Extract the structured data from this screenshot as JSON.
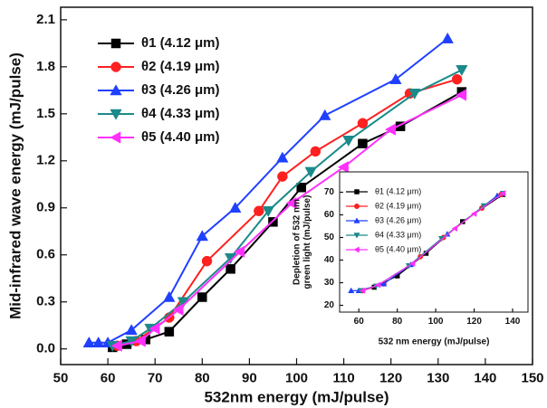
{
  "chart_data": [
    {
      "type": "line",
      "xlabel": "532nm energy (mJ/pulse)",
      "ylabel": "Mid-infrared wave energy (mJ/pulse)",
      "xlim": [
        50,
        150
      ],
      "ylim": [
        -0.1,
        2.18
      ],
      "xticks": [
        50,
        60,
        70,
        80,
        90,
        100,
        110,
        120,
        130,
        140,
        150
      ],
      "yticks": [
        {
          "value": 0,
          "label": "0.0"
        },
        0.3,
        0.6,
        0.9,
        1.2,
        1.5,
        1.8,
        2.1
      ],
      "legend": "upper left",
      "series": [
        {
          "name": "θ1 (4.12 μm)",
          "color": "#000000",
          "marker": "square",
          "x": [
            61,
            64,
            68,
            73,
            80,
            86,
            95,
            101,
            114,
            122,
            135
          ],
          "values": [
            0.01,
            0.03,
            0.06,
            0.11,
            0.33,
            0.51,
            0.81,
            1.03,
            1.31,
            1.42,
            1.64
          ]
        },
        {
          "name": "θ2 (4.19 μm)",
          "color": "#ff2020",
          "marker": "circle",
          "x": [
            62,
            66,
            73,
            81,
            92,
            97,
            104,
            114,
            124,
            134
          ],
          "values": [
            0.02,
            0.05,
            0.2,
            0.56,
            0.88,
            1.1,
            1.26,
            1.44,
            1.63,
            1.72
          ]
        },
        {
          "name": "θ3 (4.26 μm)",
          "color": "#2040ff",
          "marker": "triangle-up",
          "x": [
            56,
            58,
            60,
            65,
            73,
            80,
            87,
            97,
            106,
            121,
            132
          ],
          "values": [
            0.04,
            0.04,
            0.04,
            0.12,
            0.33,
            0.72,
            0.9,
            1.22,
            1.49,
            1.72,
            1.98
          ]
        },
        {
          "name": "θ4 (4.33 μm)",
          "color": "#1a8a8a",
          "marker": "triangle-down",
          "x": [
            61,
            65,
            69,
            76,
            86,
            94,
            103,
            111,
            125,
            135
          ],
          "values": [
            0.02,
            0.05,
            0.13,
            0.3,
            0.58,
            0.88,
            1.13,
            1.33,
            1.63,
            1.78
          ]
        },
        {
          "name": "θ5 (4.40 μm)",
          "color": "#ff30ff",
          "marker": "triangle-left",
          "x": [
            62,
            67,
            70,
            75,
            88,
            99,
            110,
            120,
            135
          ],
          "values": [
            0.02,
            0.05,
            0.13,
            0.25,
            0.62,
            0.93,
            1.16,
            1.4,
            1.62
          ]
        }
      ]
    },
    {
      "type": "line",
      "xlabel": "532 nm energy (mJ/pulse)",
      "ylabel": [
        "Depletion of 532 nm",
        "green light (mJ/pulse)"
      ],
      "xlim": [
        50,
        148
      ],
      "ylim": [
        17,
        79
      ],
      "xticks": [
        60,
        80,
        100,
        120,
        140
      ],
      "yticks": [
        20,
        30,
        40,
        50,
        60,
        70
      ],
      "legend": "upper left",
      "series": [
        {
          "name": "θ1 (4.12 μm)",
          "color": "#000000",
          "marker": "square",
          "x": [
            61,
            68,
            80,
            95,
            114,
            135
          ],
          "values": [
            26.5,
            28,
            33,
            43,
            57,
            69
          ]
        },
        {
          "name": "θ2 (4.19 μm)",
          "color": "#ff2020",
          "marker": "circle",
          "x": [
            62,
            73,
            92,
            104,
            124,
            134
          ],
          "values": [
            26.5,
            29.5,
            41.5,
            50,
            63,
            69
          ]
        },
        {
          "name": "θ3 (4.26 μm)",
          "color": "#2040ff",
          "marker": "triangle-up",
          "x": [
            56,
            60,
            73,
            87,
            106,
            132
          ],
          "values": [
            26.5,
            26.5,
            29.5,
            38,
            51.5,
            68.5
          ]
        },
        {
          "name": "θ4 (4.33 μm)",
          "color": "#1a8a8a",
          "marker": "triangle-down",
          "x": [
            61,
            69,
            86,
            103,
            125,
            135
          ],
          "values": [
            26.5,
            28.5,
            37.5,
            49.5,
            64,
            69.5
          ]
        },
        {
          "name": "θ5 (4.40 μm)",
          "color": "#ff30ff",
          "marker": "triangle-left",
          "x": [
            62,
            70,
            88,
            110,
            120,
            135
          ],
          "values": [
            26.5,
            29,
            38.5,
            54,
            60.5,
            69.5
          ]
        }
      ]
    }
  ]
}
